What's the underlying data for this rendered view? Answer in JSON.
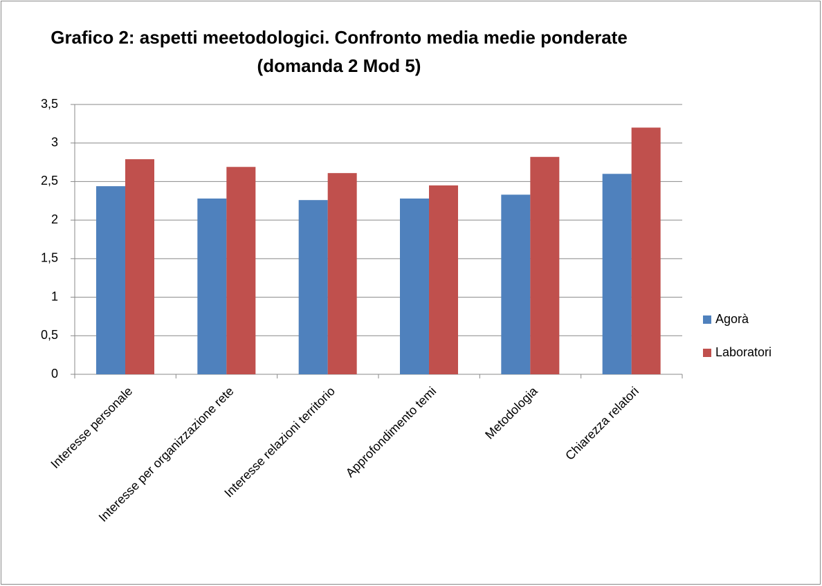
{
  "chart_data": {
    "type": "bar",
    "title": "Grafico 2: aspetti meetodologici. Confronto media medie ponderate (domanda 2 Mod 5)",
    "categories": [
      "Interesse personale",
      "Interesse per organizzazione rete",
      "Interesse relazioni territorio",
      "Approfondimento temi",
      "Metodologia",
      "Chiarezza relatori"
    ],
    "series": [
      {
        "name": "Agorà",
        "color": "#4f81bd",
        "values": [
          2.44,
          2.28,
          2.26,
          2.28,
          2.33,
          2.6
        ]
      },
      {
        "name": "Laboratori",
        "color": "#c0504d",
        "values": [
          2.79,
          2.69,
          2.61,
          2.45,
          2.82,
          3.2
        ]
      }
    ],
    "ylim": [
      0,
      3.5
    ],
    "yticks": [
      0,
      {
        "value": 0.5,
        "label": "0,5"
      },
      1,
      {
        "value": 1.5,
        "label": "1,5"
      },
      2,
      {
        "value": 2.5,
        "label": "2,5"
      },
      3,
      {
        "value": 3.5,
        "label": "3,5"
      }
    ],
    "grid": true,
    "legend": "right"
  }
}
